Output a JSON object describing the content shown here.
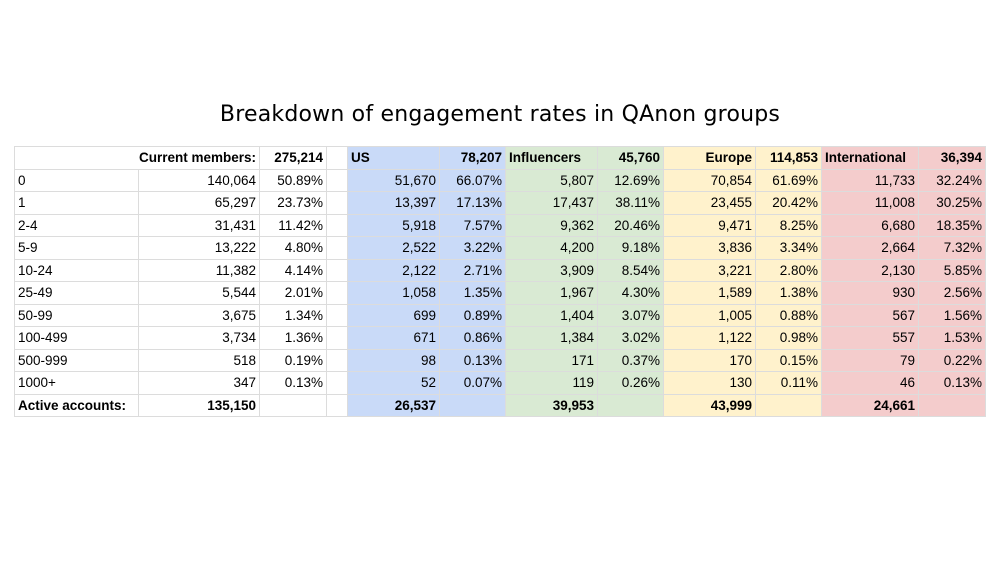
{
  "chart_data": {
    "type": "table",
    "title": "Breakdown of engagement rates in QAnon groups",
    "header": {
      "current_members_label": "Current members:",
      "current_members": "275,214",
      "us_label": "US",
      "us_total": "78,207",
      "influencers_label": "Influencers",
      "influencers_total": "45,760",
      "europe_label": "Europe",
      "europe_total": "114,853",
      "international_label": "International",
      "international_total": "36,394"
    },
    "rows": [
      {
        "label": "0",
        "all": "140,064",
        "all_pct": "50.89%",
        "us": "51,670",
        "us_pct": "66.07%",
        "inf": "5,807",
        "inf_pct": "12.69%",
        "eu": "70,854",
        "eu_pct": "61.69%",
        "int": "11,733",
        "int_pct": "32.24%"
      },
      {
        "label": "1",
        "all": "65,297",
        "all_pct": "23.73%",
        "us": "13,397",
        "us_pct": "17.13%",
        "inf": "17,437",
        "inf_pct": "38.11%",
        "eu": "23,455",
        "eu_pct": "20.42%",
        "int": "11,008",
        "int_pct": "30.25%"
      },
      {
        "label": "2-4",
        "all": "31,431",
        "all_pct": "11.42%",
        "us": "5,918",
        "us_pct": "7.57%",
        "inf": "9,362",
        "inf_pct": "20.46%",
        "eu": "9,471",
        "eu_pct": "8.25%",
        "int": "6,680",
        "int_pct": "18.35%"
      },
      {
        "label": "5-9",
        "all": "13,222",
        "all_pct": "4.80%",
        "us": "2,522",
        "us_pct": "3.22%",
        "inf": "4,200",
        "inf_pct": "9.18%",
        "eu": "3,836",
        "eu_pct": "3.34%",
        "int": "2,664",
        "int_pct": "7.32%"
      },
      {
        "label": "10-24",
        "all": "11,382",
        "all_pct": "4.14%",
        "us": "2,122",
        "us_pct": "2.71%",
        "inf": "3,909",
        "inf_pct": "8.54%",
        "eu": "3,221",
        "eu_pct": "2.80%",
        "int": "2,130",
        "int_pct": "5.85%"
      },
      {
        "label": "25-49",
        "all": "5,544",
        "all_pct": "2.01%",
        "us": "1,058",
        "us_pct": "1.35%",
        "inf": "1,967",
        "inf_pct": "4.30%",
        "eu": "1,589",
        "eu_pct": "1.38%",
        "int": "930",
        "int_pct": "2.56%"
      },
      {
        "label": "50-99",
        "all": "3,675",
        "all_pct": "1.34%",
        "us": "699",
        "us_pct": "0.89%",
        "inf": "1,404",
        "inf_pct": "3.07%",
        "eu": "1,005",
        "eu_pct": "0.88%",
        "int": "567",
        "int_pct": "1.56%"
      },
      {
        "label": "100-499",
        "all": "3,734",
        "all_pct": "1.36%",
        "us": "671",
        "us_pct": "0.86%",
        "inf": "1,384",
        "inf_pct": "3.02%",
        "eu": "1,122",
        "eu_pct": "0.98%",
        "int": "557",
        "int_pct": "1.53%"
      },
      {
        "label": "500-999",
        "all": "518",
        "all_pct": "0.19%",
        "us": "98",
        "us_pct": "0.13%",
        "inf": "171",
        "inf_pct": "0.37%",
        "eu": "170",
        "eu_pct": "0.15%",
        "int": "79",
        "int_pct": "0.22%"
      },
      {
        "label": "1000+",
        "all": "347",
        "all_pct": "0.13%",
        "us": "52",
        "us_pct": "0.07%",
        "inf": "119",
        "inf_pct": "0.26%",
        "eu": "130",
        "eu_pct": "0.11%",
        "int": "46",
        "int_pct": "0.13%"
      }
    ],
    "footer": {
      "active_label": "Active accounts:",
      "all": "135,150",
      "us": "26,537",
      "inf": "39,953",
      "eu": "43,999",
      "int": "24,661"
    },
    "colors": {
      "us": "#c9daf8",
      "influencers": "#d9ead3",
      "europe": "#fff2cc",
      "international": "#f4cccc"
    }
  }
}
